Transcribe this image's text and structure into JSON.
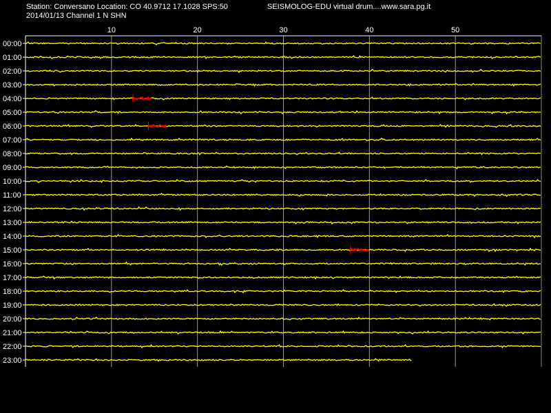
{
  "header": {
    "station_line": "Station: Conversano Location: CO 40.9712 17.1028 SPS:50",
    "date_line": "2014/01/13  Channel 1 N SHN",
    "brand_line": "SEISMOLOG-EDU virtual drum....www.sara.pg.it"
  },
  "colors": {
    "background": "#000000",
    "trace": "#ffff00",
    "event": "#ff0000",
    "grid": "#ffffff",
    "text": "#ffffff"
  },
  "chart_data": {
    "type": "line",
    "title": "SEISMOLOG-EDU virtual drum....www.sara.pg.it",
    "xlabel": "",
    "ylabel": "",
    "x_unit_minutes_range": [
      0,
      60
    ],
    "x_ticks": [
      "10",
      "20",
      "30",
      "40",
      "50"
    ],
    "x_tick_values": [
      10,
      20,
      30,
      40,
      50
    ],
    "hour_labels": [
      "00:00",
      "01:00",
      "02:00",
      "03:00",
      "04:00",
      "05:00",
      "06:00",
      "07:00",
      "08:00",
      "09:00",
      "10:00",
      "11:00",
      "12:00",
      "13:00",
      "14:00",
      "15:00",
      "16:00",
      "17:00",
      "18:00",
      "19:00",
      "20:00",
      "21:00",
      "22:00",
      "23:00"
    ],
    "last_row_end_minute": 45,
    "events": [
      {
        "hour": 4,
        "start_minute": 12.5,
        "end_minute": 14.6
      },
      {
        "hour": 6,
        "start_minute": 14.3,
        "end_minute": 16.4
      },
      {
        "hour": 15,
        "start_minute": 37.8,
        "end_minute": 40.0
      }
    ],
    "grid": true,
    "legend": "none"
  }
}
